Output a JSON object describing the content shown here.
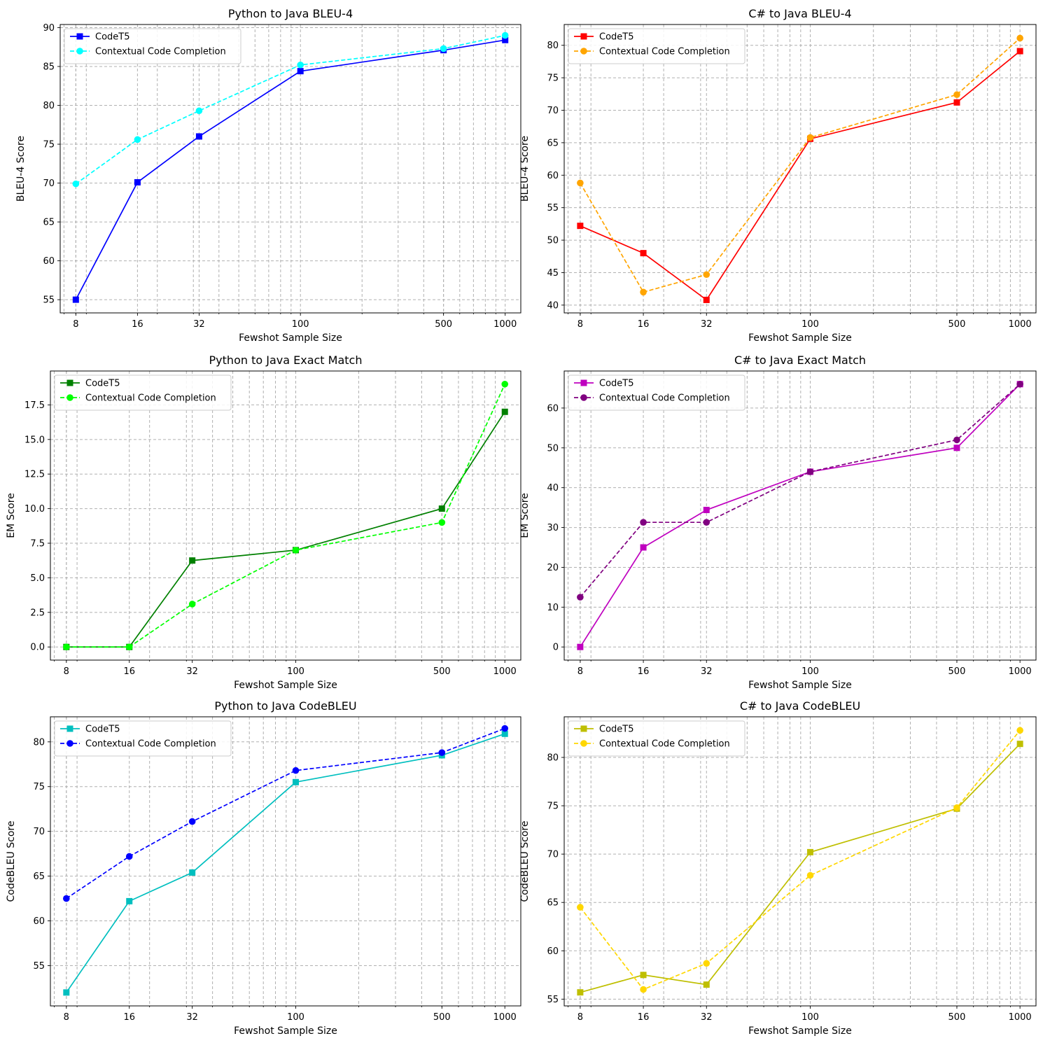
{
  "chart_data": [
    {
      "type": "line",
      "title": "Python to Java BLEU-4",
      "xlabel": "Fewshot Sample Size",
      "ylabel": "BLEU-4 Score",
      "x_scale": "log",
      "x": [
        8,
        16,
        32,
        100,
        500,
        1000
      ],
      "x_tick_labels": [
        "8",
        "16",
        "32",
        "100",
        "500",
        "1000"
      ],
      "ylim": [
        53.3,
        90.4
      ],
      "y_ticks": [
        55,
        60,
        65,
        70,
        75,
        80,
        85,
        90
      ],
      "grid": true,
      "legend": "upper-left",
      "series": [
        {
          "name": "CodeT5",
          "values": [
            55.0,
            70.1,
            76.0,
            84.4,
            87.1,
            88.4
          ],
          "color": "#0000ff",
          "marker": "square",
          "line": "solid"
        },
        {
          "name": "Contextual Code Completion",
          "values": [
            69.9,
            75.6,
            79.3,
            85.2,
            87.3,
            89.0
          ],
          "color": "#00ffff",
          "marker": "circle",
          "line": "dashed"
        }
      ]
    },
    {
      "type": "line",
      "title": "C# to Java BLEU-4",
      "xlabel": "Fewshot Sample Size",
      "ylabel": "BLEU-4 Score",
      "x_scale": "log",
      "x": [
        8,
        16,
        32,
        100,
        500,
        1000
      ],
      "x_tick_labels": [
        "8",
        "16",
        "32",
        "100",
        "500",
        "1000"
      ],
      "ylim": [
        38.8,
        83.2
      ],
      "y_ticks": [
        40,
        45,
        50,
        55,
        60,
        65,
        70,
        75,
        80
      ],
      "grid": true,
      "legend": "upper-left",
      "series": [
        {
          "name": "CodeT5",
          "values": [
            52.2,
            48.0,
            40.8,
            65.6,
            71.2,
            79.1
          ],
          "color": "#ff0000",
          "marker": "square",
          "line": "solid"
        },
        {
          "name": "Contextual Code Completion",
          "values": [
            58.8,
            42.0,
            44.7,
            65.8,
            72.4,
            81.1
          ],
          "color": "#ffa500",
          "marker": "circle",
          "line": "dashed"
        }
      ]
    },
    {
      "type": "line",
      "title": "Python to Java Exact Match",
      "xlabel": "Fewshot Sample Size",
      "ylabel": "EM Score",
      "x_scale": "log",
      "x": [
        8,
        16,
        32,
        100,
        500,
        1000
      ],
      "x_tick_labels": [
        "8",
        "16",
        "32",
        "100",
        "500",
        "1000"
      ],
      "ylim": [
        -0.95,
        19.95
      ],
      "y_ticks": [
        0.0,
        2.5,
        5.0,
        7.5,
        10.0,
        12.5,
        15.0,
        17.5
      ],
      "y_tick_labels": [
        "0.0",
        "2.5",
        "5.0",
        "7.5",
        "10.0",
        "12.5",
        "15.0",
        "17.5"
      ],
      "grid": true,
      "legend": "upper-left",
      "series": [
        {
          "name": "CodeT5",
          "values": [
            0.0,
            0.0,
            6.25,
            7.0,
            10.0,
            17.0
          ],
          "color": "#008000",
          "marker": "square",
          "line": "solid"
        },
        {
          "name": "Contextual Code Completion",
          "values": [
            0.0,
            0.0,
            3.1,
            7.0,
            9.0,
            19.0
          ],
          "color": "#00ff00",
          "marker": "circle",
          "line": "dashed"
        }
      ]
    },
    {
      "type": "line",
      "title": "C# to Java Exact Match",
      "xlabel": "Fewshot Sample Size",
      "ylabel": "EM Score",
      "x_scale": "log",
      "x": [
        8,
        16,
        32,
        100,
        500,
        1000
      ],
      "x_tick_labels": [
        "8",
        "16",
        "32",
        "100",
        "500",
        "1000"
      ],
      "ylim": [
        -3.3,
        69.3
      ],
      "y_ticks": [
        0,
        10,
        20,
        30,
        40,
        50,
        60
      ],
      "grid": true,
      "legend": "upper-left",
      "series": [
        {
          "name": "CodeT5",
          "values": [
            0.0,
            25.0,
            34.4,
            44.0,
            50.0,
            66.0
          ],
          "color": "#bf00bf",
          "marker": "square",
          "line": "solid"
        },
        {
          "name": "Contextual Code Completion",
          "values": [
            12.5,
            31.3,
            31.3,
            44.0,
            52.0,
            66.0
          ],
          "color": "#800080",
          "marker": "circle",
          "line": "dashed"
        }
      ]
    },
    {
      "type": "line",
      "title": "Python to Java CodeBLEU",
      "xlabel": "Fewshot Sample Size",
      "ylabel": "CodeBLEU Score",
      "x_scale": "log",
      "x": [
        8,
        16,
        32,
        100,
        500,
        1000
      ],
      "x_tick_labels": [
        "8",
        "16",
        "32",
        "100",
        "500",
        "1000"
      ],
      "ylim": [
        50.5,
        82.8
      ],
      "y_ticks": [
        55,
        60,
        65,
        70,
        75,
        80
      ],
      "grid": true,
      "legend": "upper-left",
      "series": [
        {
          "name": "CodeT5",
          "values": [
            52.0,
            62.2,
            65.4,
            75.5,
            78.5,
            80.9
          ],
          "color": "#00bfbf",
          "marker": "square",
          "line": "solid"
        },
        {
          "name": "Contextual Code Completion",
          "values": [
            62.5,
            67.2,
            71.1,
            76.8,
            78.8,
            81.5
          ],
          "color": "#0000ff",
          "marker": "circle",
          "line": "dashed"
        }
      ]
    },
    {
      "type": "line",
      "title": "C# to Java CodeBLEU",
      "xlabel": "Fewshot Sample Size",
      "ylabel": "CodeBLEU Score",
      "x_scale": "log",
      "x": [
        8,
        16,
        32,
        100,
        500,
        1000
      ],
      "x_tick_labels": [
        "8",
        "16",
        "32",
        "100",
        "500",
        "1000"
      ],
      "ylim": [
        54.3,
        84.2
      ],
      "y_ticks": [
        55,
        60,
        65,
        70,
        75,
        80
      ],
      "grid": true,
      "legend": "upper-left",
      "series": [
        {
          "name": "CodeT5",
          "values": [
            55.7,
            57.5,
            56.5,
            70.2,
            74.7,
            81.4
          ],
          "color": "#bfbf00",
          "marker": "square",
          "line": "solid"
        },
        {
          "name": "Contextual Code Completion",
          "values": [
            64.5,
            56.0,
            58.7,
            67.8,
            74.8,
            82.8
          ],
          "color": "#ffd700",
          "marker": "circle",
          "line": "dashed"
        }
      ]
    }
  ]
}
